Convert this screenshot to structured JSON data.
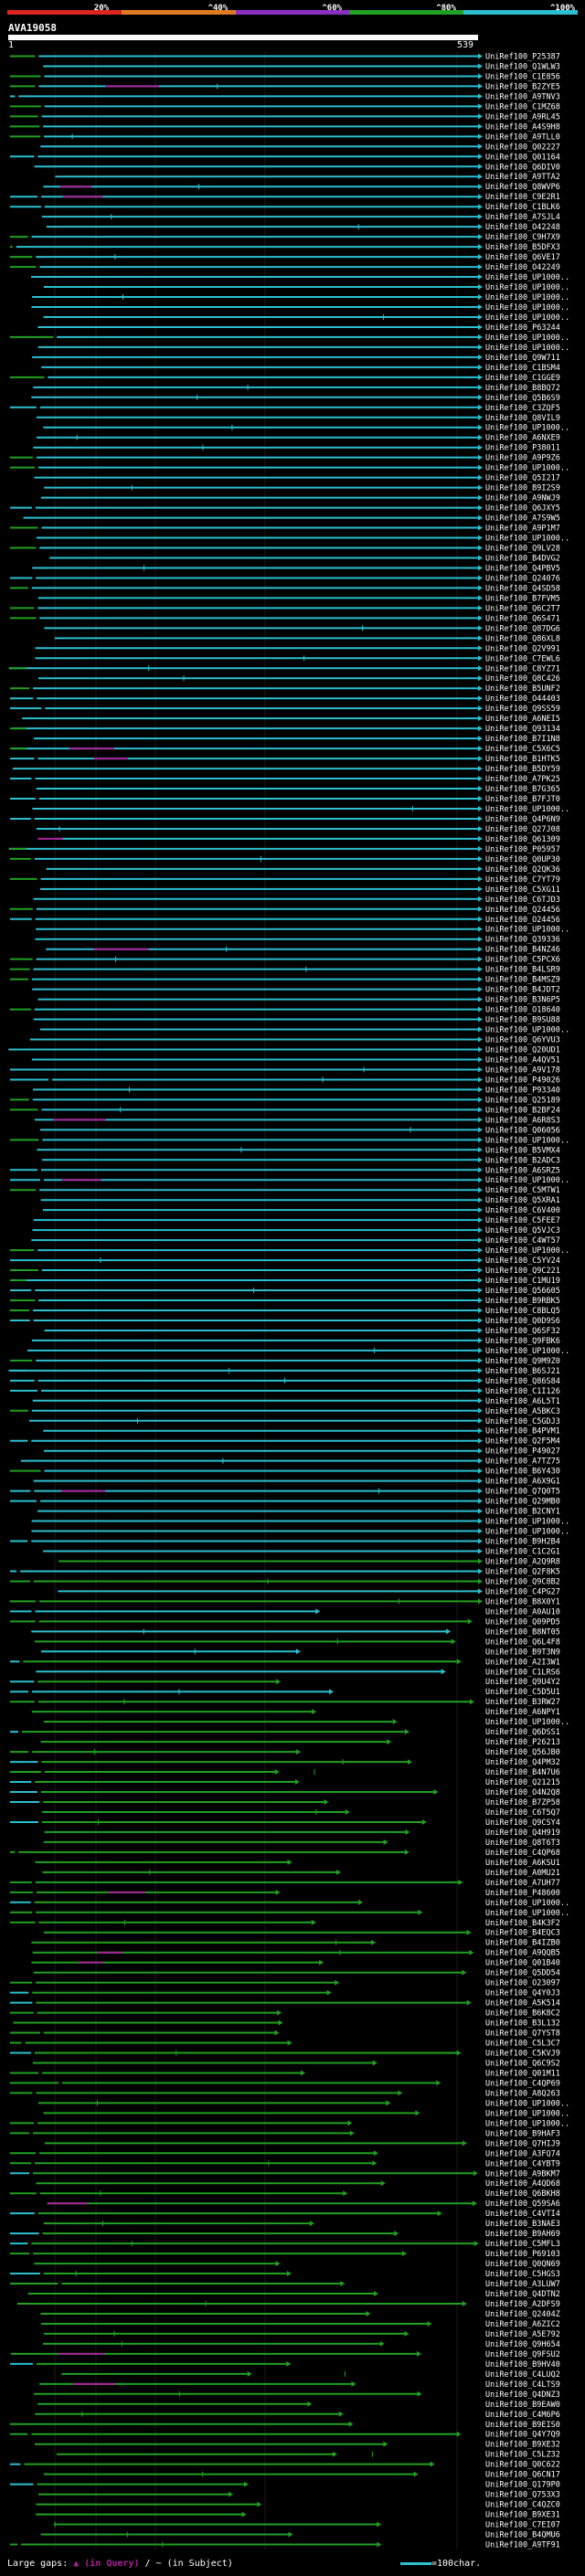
{
  "header": {
    "query_id": "AVA19058",
    "start": "1",
    "end": "539",
    "scale": [
      {
        "label": "20%",
        "color": "#e0241f"
      },
      {
        "label": "^40%",
        "color": "#e07b1f"
      },
      {
        "label": "^60%",
        "color": "#8a2fc4"
      },
      {
        "label": "^80%",
        "color": "#21a021"
      },
      {
        "label": "^100%",
        "color": "#2bbfd0"
      }
    ]
  },
  "footer": {
    "gaps_label": "Large gaps: ",
    "gap_in_query": "▲ (in Query)",
    "gap_sep": " / ",
    "gap_in_subject": "~ (in Subject)",
    "scale_note": "=100char."
  },
  "chart_data": {
    "type": "alignment-overview",
    "title": "AVA19058",
    "x_range": [
      1,
      539
    ],
    "color_legend": [
      {
        "identity_max": 20,
        "color": "#e0241f"
      },
      {
        "identity_max": 40,
        "color": "#e07b1f"
      },
      {
        "identity_max": 60,
        "color": "#8a2fc4"
      },
      {
        "identity_max": 80,
        "color": "#21a021"
      },
      {
        "identity_max": 100,
        "color": "#2bbfd0"
      }
    ],
    "hits": [
      "UniRef100_P25387",
      "UniRef100_Q1WLW3",
      "UniRef100_C1E856",
      "UniRef100_B2ZYE5",
      "UniRef100_A9TNV3",
      "UniRef100_C1MZ68",
      "UniRef100_A9RL45",
      "UniRef100_A4S9H8",
      "UniRef100_A9TLL0",
      "UniRef100_Q02227",
      "UniRef100_Q01164",
      "UniRef100_Q6DIV0",
      "UniRef100_A9TTA2",
      "UniRef100_Q8WVP6",
      "UniRef100_C9E2R1",
      "UniRef100_C1BLK6",
      "UniRef100_A7SJL4",
      "UniRef100_O42248",
      "UniRef100_C9H7X9",
      "UniRef100_B5DFX3",
      "UniRef100_Q6VE17",
      "UniRef100_O42249",
      "UniRef100_UP1000..",
      "UniRef100_UP1000..",
      "UniRef100_UP1000..",
      "UniRef100_UP1000..",
      "UniRef100_UP1000..",
      "UniRef100_P63244",
      "UniRef100_UP1000..",
      "UniRef100_UP1000..",
      "UniRef100_Q9W711",
      "UniRef100_C1BSM4",
      "UniRef100_C1GGE9",
      "UniRef100_B8BQ72",
      "UniRef100_Q5B6S9",
      "UniRef100_C3ZQF5",
      "UniRef100_Q8VIL9",
      "UniRef100_UP1000..",
      "UniRef100_A6NXE9",
      "UniRef100_P38011",
      "UniRef100_A9P9Z6",
      "UniRef100_UP1000..",
      "UniRef100_Q5I217",
      "UniRef100_B9I2S9",
      "UniRef100_A9NWJ9",
      "UniRef100_Q6JXY5",
      "UniRef100_A7S9W5",
      "UniRef100_A9P1M7",
      "UniRef100_UP1000..",
      "UniRef100_Q9LV28",
      "UniRef100_B4DVG2",
      "UniRef100_Q4PBV5",
      "UniRef100_Q24076",
      "UniRef100_Q4SD58",
      "UniRef100_B7FVM5",
      "UniRef100_Q6C2T7",
      "UniRef100_Q6S471",
      "UniRef100_Q87DG6",
      "UniRef100_Q86XL8",
      "UniRef100_Q2V991",
      "UniRef100_C7EWL6",
      "UniRef100_C8YZ71",
      "UniRef100_Q8C426",
      "UniRef100_B5UNF2",
      "UniRef100_O44403",
      "UniRef100_Q9SS59",
      "UniRef100_A6NEI5",
      "UniRef100_Q93134",
      "UniRef100_B7I1N8",
      "UniRef100_C5X6C5",
      "UniRef100_B1HTK5",
      "UniRef100_B5DY59",
      "UniRef100_A7PK25",
      "UniRef100_B7G365",
      "UniRef100_B7FJT0",
      "UniRef100_UP1000..",
      "UniRef100_Q4P6N9",
      "UniRef100_Q27J08",
      "UniRef100_Q61309",
      "UniRef100_P05957",
      "UniRef100_Q0UP30",
      "UniRef100_Q2QK36",
      "UniRef100_C7YT79",
      "UniRef100_C5XG11",
      "UniRef100_C6TJD3",
      "UniRef100_Q24456",
      "UniRef100_O24456",
      "UniRef100_UP1000..",
      "UniRef100_Q39336",
      "UniRef100_B4NZ46",
      "UniRef100_C5PCX6",
      "UniRef100_B4LSR9",
      "UniRef100_B4MSZ9",
      "UniRef100_B4JDT2",
      "UniRef100_B3N6P5",
      "UniRef100_O18640",
      "UniRef100_B9SU88",
      "UniRef100_UP1000..",
      "UniRef100_Q6YVU3",
      "UniRef100_Q20UD1",
      "UniRef100_A4QV51",
      "UniRef100_A9V178",
      "UniRef100_P49026",
      "UniRef100_P93340",
      "UniRef100_Q25189",
      "UniRef100_B2BF24",
      "UniRef100_A6R8S3",
      "UniRef100_Q06056",
      "UniRef100_UP1000..",
      "UniRef100_B5VMX4",
      "UniRef100_B2ADC3",
      "UniRef100_A6SRZ5",
      "UniRef100_UP1000..",
      "UniRef100_C5MTW1",
      "UniRef100_Q5XRA1",
      "UniRef100_C6V400",
      "UniRef100_C5FEE7",
      "UniRef100_Q5VJC3",
      "UniRef100_C4WT57",
      "UniRef100_UP1000..",
      "UniRef100_C5YV24",
      "UniRef100_Q9C221",
      "UniRef100_C1MU19",
      "UniRef100_Q56605",
      "UniRef100_B9RBK5",
      "UniRef100_C8BLQ5",
      "UniRef100_Q0D9S6",
      "UniRef100_Q6SF32",
      "UniRef100_Q9FBK6",
      "UniRef100_UP1000..",
      "UniRef100_Q9M9Z0",
      "UniRef100_B6SJ21",
      "UniRef100_Q86S84",
      "UniRef100_C1I126",
      "UniRef100_A6L5T1",
      "UniRef100_A5BKC3",
      "UniRef100_C5GDJ3",
      "UniRef100_B4PVM1",
      "UniRef100_Q2F5M4",
      "UniRef100_P49027",
      "UniRef100_A7TZ75",
      "UniRef100_B6Y430",
      "UniRef100_A6X9G1",
      "UniRef100_Q7Q0T5",
      "UniRef100_Q29MB0",
      "UniRef100_B2CNY1",
      "UniRef100_UP1000..",
      "UniRef100_UP1000..",
      "UniRef100_B9H2B4",
      "UniRef100_C1C2G1",
      "UniRef100_A2Q9R8",
      "UniRef100_Q2F8K5",
      "UniRef100_Q9C8B2",
      "UniRef100_C4PG27",
      "UniRef100_B8X0Y1",
      "UniRef100_A0AU10",
      "UniRef100_Q09PD5",
      "UniRef100_B8NT05",
      "UniRef100_Q6L4F8",
      "UniRef100_B9T3N9",
      "UniRef100_A2I3W1",
      "UniRef100_C1LRS6",
      "UniRef100_Q9U4Y2",
      "UniRef100_C5D5U1",
      "UniRef100_B3RW27",
      "UniRef100_A6NPY1",
      "UniRef100_UP1000..",
      "UniRef100_Q6DSS1",
      "UniRef100_P26213",
      "UniRef100_Q56JB0",
      "UniRef100_Q4PM32",
      "UniRef100_B4N7U6",
      "UniRef100_Q21215",
      "UniRef100_O4N2Q8",
      "UniRef100_B7ZP58",
      "UniRef100_C6T5Q7",
      "UniRef100_Q9CSY4",
      "UniRef100_Q4H919",
      "UniRef100_Q8T6T3",
      "UniRef100_C4QP68",
      "UniRef100_A6KSU1",
      "UniRef100_A0MU21",
      "UniRef100_A7UH77",
      "UniRef100_P48600",
      "UniRef100_UP1000..",
      "UniRef100_UP1000..",
      "UniRef100_B4K3F2",
      "UniRef100_B4EQC3",
      "UniRef100_B4IZB0",
      "UniRef100_A9QQB5",
      "UniRef100_Q01B40",
      "UniRef100_Q5DD54",
      "UniRef100_O23097",
      "UniRef100_Q4Y0J3",
      "UniRef100_A5K514",
      "UniRef100_B6K8C2",
      "UniRef100_B3L132",
      "UniRef100_Q7YST8",
      "UniRef100_C5L3C7",
      "UniRef100_C5KVJ9",
      "UniRef100_Q6C9S2",
      "UniRef100_Q01M11",
      "UniRef100_C4QP69",
      "UniRef100_A8Q263",
      "UniRef100_UP1000..",
      "UniRef100_UP1000..",
      "UniRef100_UP1000..",
      "UniRef100_B9HAF3",
      "UniRef100_Q7HIJ9",
      "UniRef100_A3FQ74",
      "UniRef100_C4YBT9",
      "UniRef100_A9BKM7",
      "UniRef100_A4QD68",
      "UniRef100_Q6BKH8",
      "UniRef100_Q59SA6",
      "UniRef100_C4VTI4",
      "UniRef100_B3NAE3",
      "UniRef100_B9AH69",
      "UniRef100_C5MFL3",
      "UniRef100_P69103",
      "UniRef100_Q0QN69",
      "UniRef100_C5HGS3",
      "UniRef100_A3LUW7",
      "UniRef100_Q4DTN2",
      "UniRef100_A2DFS9",
      "UniRef100_Q2404Z",
      "UniRef100_A6ZIC2",
      "UniRef100_A5E792",
      "UniRef100_Q9H654",
      "UniRef100_Q9FSU2",
      "UniRef100_B9HV40",
      "UniRef100_C4LUQ2",
      "UniRef100_C4LTS9",
      "UniRef100_Q4DNZ3",
      "UniRef100_B9EAW0",
      "UniRef100_C4M6P6",
      "UniRef100_B9EIS0",
      "UniRef100_Q4Y7Q9",
      "UniRef100_B9XE32",
      "UniRef100_C5LZ32",
      "UniRef100_Q0C622",
      "UniRef100_Q6CN17",
      "UniRef100_Q179P0",
      "UniRef100_Q753X3",
      "UniRef100_C4QZC0",
      "UniRef100_B9XE31",
      "UniRef100_C7EI07",
      "UniRef100_B4QMU6",
      "UniRef100_A9TF91"
    ]
  }
}
